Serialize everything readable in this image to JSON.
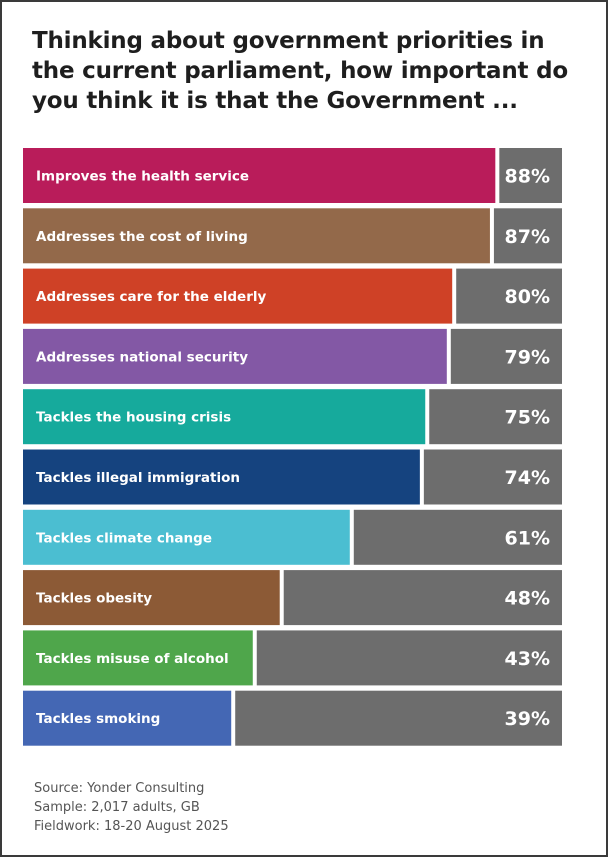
{
  "title": "Thinking about government priorities in the current parliament, how important do you think it is that the Government ...",
  "source": {
    "line1": "Source: Yonder Consulting",
    "line2": "Sample: 2,017 adults, GB",
    "line3": "Fieldwork: 18-20 August 2025"
  },
  "chart_data": {
    "type": "bar",
    "orientation": "horizontal",
    "categories": [
      "Improves the health service",
      "Addresses the cost of living",
      "Addresses care for the elderly",
      "Addresses national security",
      "Tackles the housing crisis",
      "Tackles illegal immigration",
      "Tackles climate change",
      "Tackles obesity",
      "Tackles misuse of alcohol",
      "Tackles smoking"
    ],
    "values": [
      88,
      87,
      80,
      79,
      75,
      74,
      61,
      48,
      43,
      39
    ],
    "value_labels": [
      "88%",
      "87%",
      "80%",
      "79%",
      "75%",
      "74%",
      "61%",
      "48%",
      "43%",
      "39%"
    ],
    "xlim": [
      0,
      100
    ],
    "colors": [
      "#b91c5a",
      "#93694a",
      "#cf4126",
      "#8358a5",
      "#16aa9c",
      "#15437f",
      "#4bbed1",
      "#8c5a36",
      "#4fa64b",
      "#4467b4"
    ],
    "remainder_color": "#6d6d6d"
  }
}
